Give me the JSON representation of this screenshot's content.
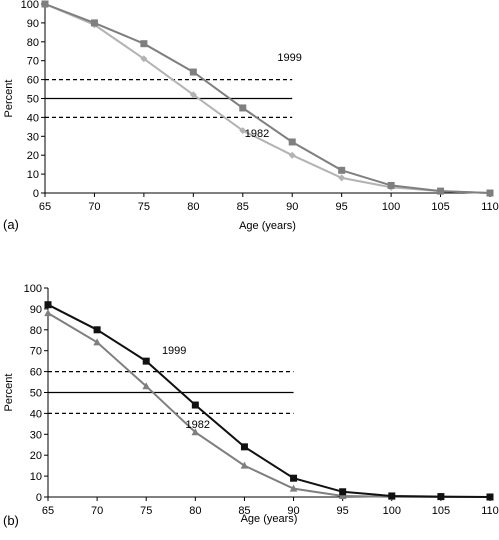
{
  "chart_data": [
    {
      "type": "line",
      "panel_label": "(a)",
      "xlabel": "Age (years)",
      "ylabel": "Percent",
      "xlim": [
        65,
        110
      ],
      "ylim": [
        0,
        100
      ],
      "x_ticks": [
        65,
        70,
        75,
        80,
        85,
        90,
        95,
        100,
        105,
        110
      ],
      "y_ticks": [
        0,
        10,
        20,
        30,
        40,
        50,
        60,
        70,
        80,
        90,
        100
      ],
      "grid": false,
      "reference_lines": [
        {
          "y": 60,
          "style": "dashed"
        },
        {
          "y": 50,
          "style": "solid"
        },
        {
          "y": 40,
          "style": "dashed"
        }
      ],
      "series": [
        {
          "name": "1999",
          "color": "#7f7f7f",
          "marker": "square",
          "x": [
            65,
            70,
            75,
            80,
            85,
            90,
            95,
            100,
            105,
            110
          ],
          "y": [
            100,
            90,
            79,
            64,
            45,
            27,
            12,
            4,
            1,
            0
          ]
        },
        {
          "name": "1982",
          "color": "#b3b3b3",
          "marker": "diamond",
          "x": [
            65,
            70,
            75,
            80,
            85,
            90,
            95,
            100,
            105,
            110
          ],
          "y": [
            100,
            89,
            71,
            52,
            33,
            20,
            8,
            3,
            1,
            0
          ]
        }
      ]
    },
    {
      "type": "line",
      "panel_label": "(b)",
      "xlabel": "Age (years)",
      "ylabel": "Percent",
      "xlim": [
        65,
        110
      ],
      "ylim": [
        0,
        100
      ],
      "x_ticks": [
        65,
        70,
        75,
        80,
        85,
        90,
        95,
        100,
        105,
        110
      ],
      "y_ticks": [
        0,
        10,
        20,
        30,
        40,
        50,
        60,
        70,
        80,
        90,
        100
      ],
      "grid": false,
      "reference_lines": [
        {
          "y": 60,
          "style": "dashed"
        },
        {
          "y": 50,
          "style": "solid"
        },
        {
          "y": 40,
          "style": "dashed"
        }
      ],
      "series": [
        {
          "name": "1999",
          "color": "#111111",
          "marker": "square",
          "x": [
            65,
            70,
            75,
            80,
            85,
            90,
            95,
            100,
            105,
            110
          ],
          "y": [
            92,
            80,
            65,
            44,
            24,
            9,
            2.5,
            0.5,
            0.2,
            0
          ]
        },
        {
          "name": "1982",
          "color": "#7f7f7f",
          "marker": "triangle",
          "x": [
            65,
            70,
            75,
            80,
            85,
            90,
            95,
            100,
            105,
            110
          ],
          "y": [
            88,
            74,
            53,
            31,
            15,
            4,
            0.5,
            0.1,
            0,
            0
          ]
        }
      ]
    }
  ]
}
